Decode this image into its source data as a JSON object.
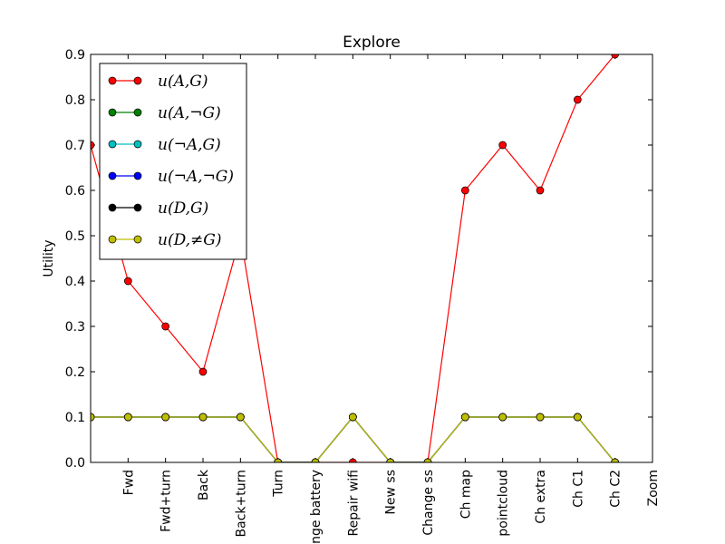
{
  "chart_data": {
    "type": "line",
    "title": "Explore",
    "xlabel": "",
    "ylabel": "Utility",
    "categories": [
      "",
      "Fwd",
      "Fwd+turn",
      "Back",
      "Back+turn",
      "Turn",
      "Change battery",
      "Repair wifi",
      "New ss",
      "Change ss",
      "Ch map",
      "pointcloud",
      "Ch extra",
      "Ch C1",
      "Ch C2",
      "Zoom"
    ],
    "ylim": [
      0,
      0.9
    ],
    "yticks": [
      "0.0",
      "0.1",
      "0.2",
      "0.3",
      "0.4",
      "0.5",
      "0.6",
      "0.7",
      "0.8",
      "0.9"
    ],
    "grid": false,
    "legend_position": "upper-left",
    "series": [
      {
        "name": "u(A,G)",
        "color": "#ff0000",
        "values": [
          0.7,
          0.4,
          0.3,
          0.2,
          0.5,
          0.0,
          0.0,
          0.0,
          0.0,
          0.0,
          0.6,
          0.7,
          0.6,
          0.8,
          0.9,
          null
        ]
      },
      {
        "name": "u(A,¬G)",
        "color": "#008000",
        "values": [
          0.1,
          0.1,
          0.1,
          0.1,
          0.1,
          0.0,
          0.0,
          0.1,
          0.0,
          0.0,
          0.1,
          0.1,
          0.1,
          0.1,
          0.0,
          null
        ]
      },
      {
        "name": "u(¬A,G)",
        "color": "#00bfbf",
        "values": [
          0.1,
          0.1,
          0.1,
          0.1,
          0.1,
          0.0,
          0.0,
          0.1,
          0.0,
          0.0,
          0.1,
          0.1,
          0.1,
          0.1,
          0.0,
          null
        ]
      },
      {
        "name": "u(¬A,¬G)",
        "color": "#0000ff",
        "values": [
          0.1,
          0.1,
          0.1,
          0.1,
          0.1,
          0.0,
          0.0,
          0.1,
          0.0,
          0.0,
          0.1,
          0.1,
          0.1,
          0.1,
          0.0,
          null
        ]
      },
      {
        "name": "u(D,G)",
        "color": "#000000",
        "values": [
          0.1,
          0.1,
          0.1,
          0.1,
          0.1,
          0.0,
          0.0,
          0.1,
          0.0,
          0.0,
          0.1,
          0.1,
          0.1,
          0.1,
          0.0,
          null
        ]
      },
      {
        "name": "u(D,≠G)",
        "color": "#bfbf00",
        "values": [
          0.1,
          0.1,
          0.1,
          0.1,
          0.1,
          0.0,
          0.0,
          0.1,
          0.0,
          0.0,
          0.1,
          0.1,
          0.1,
          0.1,
          0.0,
          null
        ]
      }
    ]
  }
}
